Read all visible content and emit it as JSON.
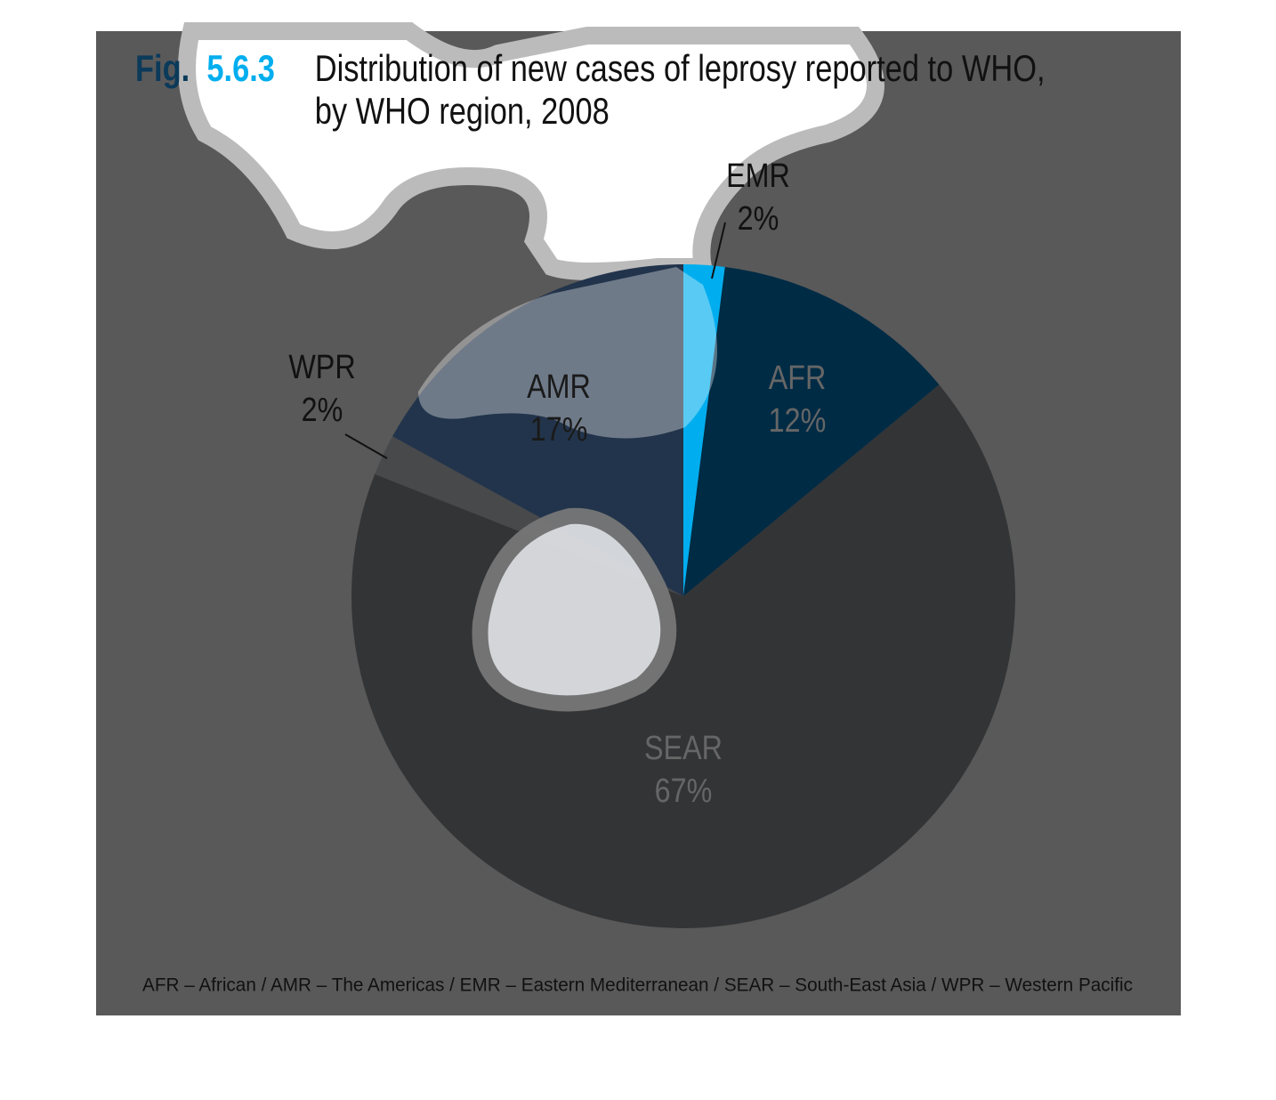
{
  "chart_data": {
    "type": "pie",
    "figure_prefix": "Fig.",
    "figure_number": "5.6.3",
    "title_lines": [
      "Distribution of new cases of leprosy reported to WHO,",
      "by WHO region, 2008"
    ],
    "categories": [
      "EMR",
      "AFR",
      "SEAR",
      "WPR",
      "AMR"
    ],
    "values": [
      2,
      12,
      67,
      2,
      17
    ],
    "value_labels": [
      "2%",
      "12%",
      "67%",
      "2%",
      "17%"
    ],
    "colors": [
      "#00aeef",
      "#002b45",
      "#333436",
      "#48494b",
      "#22344b"
    ],
    "footnote": "AFR – African / AMR – The Americas / EMR – Eastern Mediterranean / SEAR – South-East Asia / WPR – Western Pacific"
  }
}
